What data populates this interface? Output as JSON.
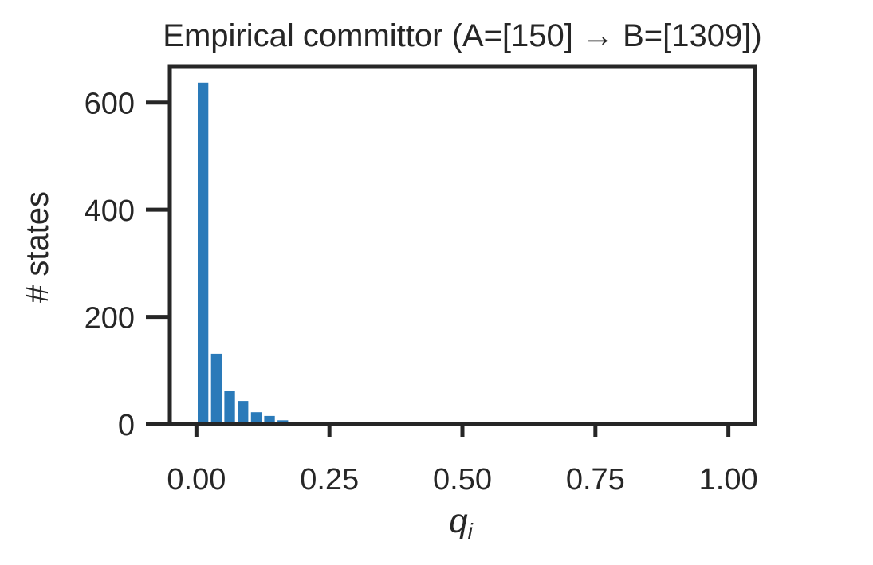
{
  "chart_data": {
    "type": "bar",
    "title": "Empirical committor (A=[150] → B=[1309])",
    "xlabel": "q_i",
    "xlabel_display": {
      "base": "q",
      "subscript": "i"
    },
    "ylabel": "# states",
    "xlim": [
      -0.05,
      1.05
    ],
    "ylim": [
      0,
      668
    ],
    "x_ticks": [
      0.0,
      0.25,
      0.5,
      0.75,
      1.0
    ],
    "x_tick_labels": [
      "0.00",
      "0.25",
      "0.50",
      "0.75",
      "1.00"
    ],
    "y_ticks": [
      0,
      200,
      400,
      600
    ],
    "y_tick_labels": [
      "0",
      "200",
      "400",
      "600"
    ],
    "grid": false,
    "legend": null,
    "bin_width": 0.025,
    "bar_rwidth": 0.8,
    "bins": [
      {
        "x_start": 0.0,
        "x_end": 0.025,
        "count": 637
      },
      {
        "x_start": 0.025,
        "x_end": 0.05,
        "count": 131
      },
      {
        "x_start": 0.05,
        "x_end": 0.075,
        "count": 61
      },
      {
        "x_start": 0.075,
        "x_end": 0.1,
        "count": 43
      },
      {
        "x_start": 0.1,
        "x_end": 0.125,
        "count": 22
      },
      {
        "x_start": 0.125,
        "x_end": 0.15,
        "count": 15
      },
      {
        "x_start": 0.15,
        "x_end": 0.175,
        "count": 7
      }
    ],
    "categories": [
      "0.0125",
      "0.0375",
      "0.0625",
      "0.0875",
      "0.1125",
      "0.1375",
      "0.1625"
    ],
    "values": [
      637,
      131,
      61,
      43,
      22,
      15,
      7
    ],
    "colors": {
      "bar": "#2a7ab9",
      "axis": "#262626",
      "background": "#ffffff"
    }
  }
}
